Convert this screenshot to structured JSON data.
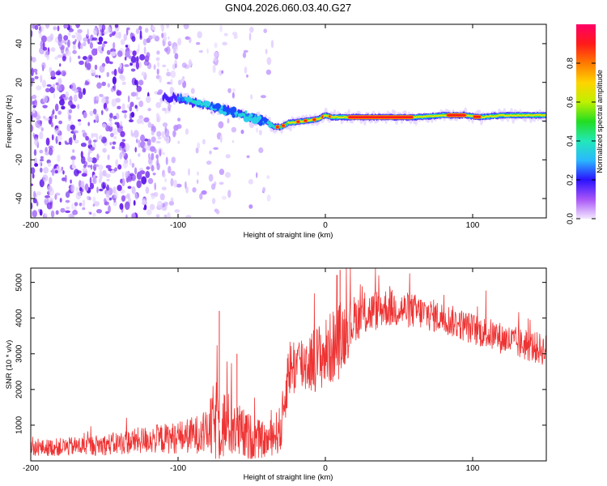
{
  "title": "GN04.2026.060.03.40.G27",
  "chart_data": [
    {
      "type": "heatmap",
      "name": "spectrogram",
      "xlabel": "Height of straight line (km)",
      "ylabel": "Frequency (Hz)",
      "xlim": [
        -200,
        150
      ],
      "ylim": [
        -50,
        50
      ],
      "xticks": [
        -200,
        -100,
        0,
        100
      ],
      "yticks": [
        -40,
        -20,
        0,
        20,
        40
      ],
      "ridge": [
        {
          "x": -100,
          "y": 12
        },
        {
          "x": -90,
          "y": 10
        },
        {
          "x": -80,
          "y": 8
        },
        {
          "x": -70,
          "y": 6
        },
        {
          "x": -60,
          "y": 4
        },
        {
          "x": -50,
          "y": 2
        },
        {
          "x": -40,
          "y": 0
        },
        {
          "x": -35,
          "y": -3
        },
        {
          "x": -30,
          "y": -3
        },
        {
          "x": -25,
          "y": -1
        },
        {
          "x": -15,
          "y": 0
        },
        {
          "x": -5,
          "y": 1
        },
        {
          "x": 0,
          "y": 3
        },
        {
          "x": 5,
          "y": 2
        },
        {
          "x": 10,
          "y": 2
        },
        {
          "x": 30,
          "y": 2
        },
        {
          "x": 60,
          "y": 2
        },
        {
          "x": 80,
          "y": 3
        },
        {
          "x": 95,
          "y": 3
        },
        {
          "x": 105,
          "y": 2
        },
        {
          "x": 120,
          "y": 3
        },
        {
          "x": 150,
          "y": 3
        }
      ],
      "colorbar": {
        "label": "Normalized spectral amplitude",
        "range": [
          0,
          1
        ],
        "ticks": [
          "0.0",
          "0.2",
          "0.4",
          "0.6",
          "0.8"
        ]
      }
    },
    {
      "type": "line",
      "name": "snr",
      "xlabel": "Height of straight line (km)",
      "ylabel": "SNR (10 * v/v)",
      "xlim": [
        -200,
        150
      ],
      "ylim": [
        0,
        5400
      ],
      "xticks": [
        -200,
        -100,
        0,
        100
      ],
      "yticks": [
        1000,
        2000,
        3000,
        4000,
        5000
      ],
      "color": "#ee3333",
      "envelope": [
        {
          "x": -200,
          "mean": 350,
          "spread": 450
        },
        {
          "x": -150,
          "mean": 450,
          "spread": 600
        },
        {
          "x": -120,
          "mean": 600,
          "spread": 800
        },
        {
          "x": -100,
          "mean": 650,
          "spread": 900
        },
        {
          "x": -80,
          "mean": 800,
          "spread": 1200
        },
        {
          "x": -75,
          "mean": 1100,
          "spread": 2500
        },
        {
          "x": -65,
          "mean": 1000,
          "spread": 1800
        },
        {
          "x": -55,
          "mean": 700,
          "spread": 1500
        },
        {
          "x": -40,
          "mean": 550,
          "spread": 900
        },
        {
          "x": -30,
          "mean": 900,
          "spread": 1400
        },
        {
          "x": -25,
          "mean": 2600,
          "spread": 1700
        },
        {
          "x": -10,
          "mean": 2800,
          "spread": 1800
        },
        {
          "x": 0,
          "mean": 3000,
          "spread": 2000
        },
        {
          "x": 10,
          "mean": 3400,
          "spread": 2200
        },
        {
          "x": 20,
          "mean": 4000,
          "spread": 1300
        },
        {
          "x": 40,
          "mean": 4300,
          "spread": 1100
        },
        {
          "x": 60,
          "mean": 4200,
          "spread": 1000
        },
        {
          "x": 80,
          "mean": 4000,
          "spread": 900
        },
        {
          "x": 100,
          "mean": 3700,
          "spread": 900
        },
        {
          "x": 130,
          "mean": 3300,
          "spread": 900
        },
        {
          "x": 150,
          "mean": 3100,
          "spread": 900
        }
      ],
      "peaks": [
        {
          "x": -72,
          "y": 4200
        },
        {
          "x": -60,
          "y": 3000
        },
        {
          "x": 8,
          "y": 5200
        },
        {
          "x": 10,
          "y": 5350
        }
      ]
    }
  ]
}
